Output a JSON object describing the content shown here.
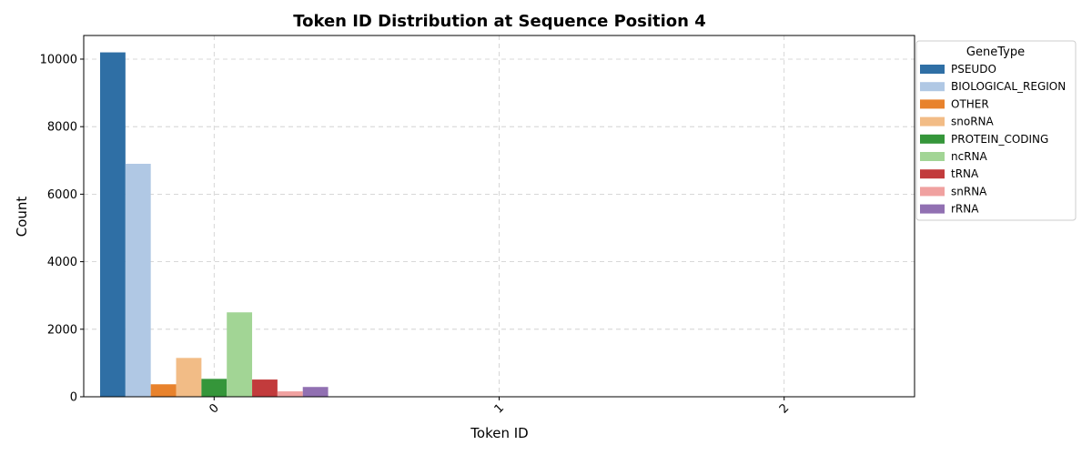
{
  "chart_data": {
    "type": "bar",
    "title": "Token ID Distribution at Sequence Position 4",
    "xlabel": "Token ID",
    "ylabel": "Count",
    "categories": [
      "0",
      "1",
      "2"
    ],
    "ylim": [
      0,
      10700
    ],
    "yticks": [
      0,
      2000,
      4000,
      6000,
      8000,
      10000
    ],
    "grid": true,
    "legend_title": "GeneType",
    "legend_position": "upper-right-outside",
    "series": [
      {
        "name": "PSEUDO",
        "color": "#2f6fa5",
        "values": [
          10200,
          0,
          0
        ]
      },
      {
        "name": "BIOLOGICAL_REGION",
        "color": "#b0c8e4",
        "values": [
          6900,
          0,
          0
        ]
      },
      {
        "name": "OTHER",
        "color": "#e8822c",
        "values": [
          370,
          0,
          0
        ]
      },
      {
        "name": "snoRNA",
        "color": "#f2bc86",
        "values": [
          1150,
          0,
          0
        ]
      },
      {
        "name": "PROTEIN_CODING",
        "color": "#35963a",
        "values": [
          530,
          0,
          0
        ]
      },
      {
        "name": "ncRNA",
        "color": "#a2d595",
        "values": [
          2500,
          0,
          0
        ]
      },
      {
        "name": "tRNA",
        "color": "#c23b3c",
        "values": [
          510,
          0,
          0
        ]
      },
      {
        "name": "snRNA",
        "color": "#f0a1a0",
        "values": [
          160,
          0,
          0
        ]
      },
      {
        "name": "rRNA",
        "color": "#9170b2",
        "values": [
          290,
          0,
          0
        ]
      }
    ]
  }
}
